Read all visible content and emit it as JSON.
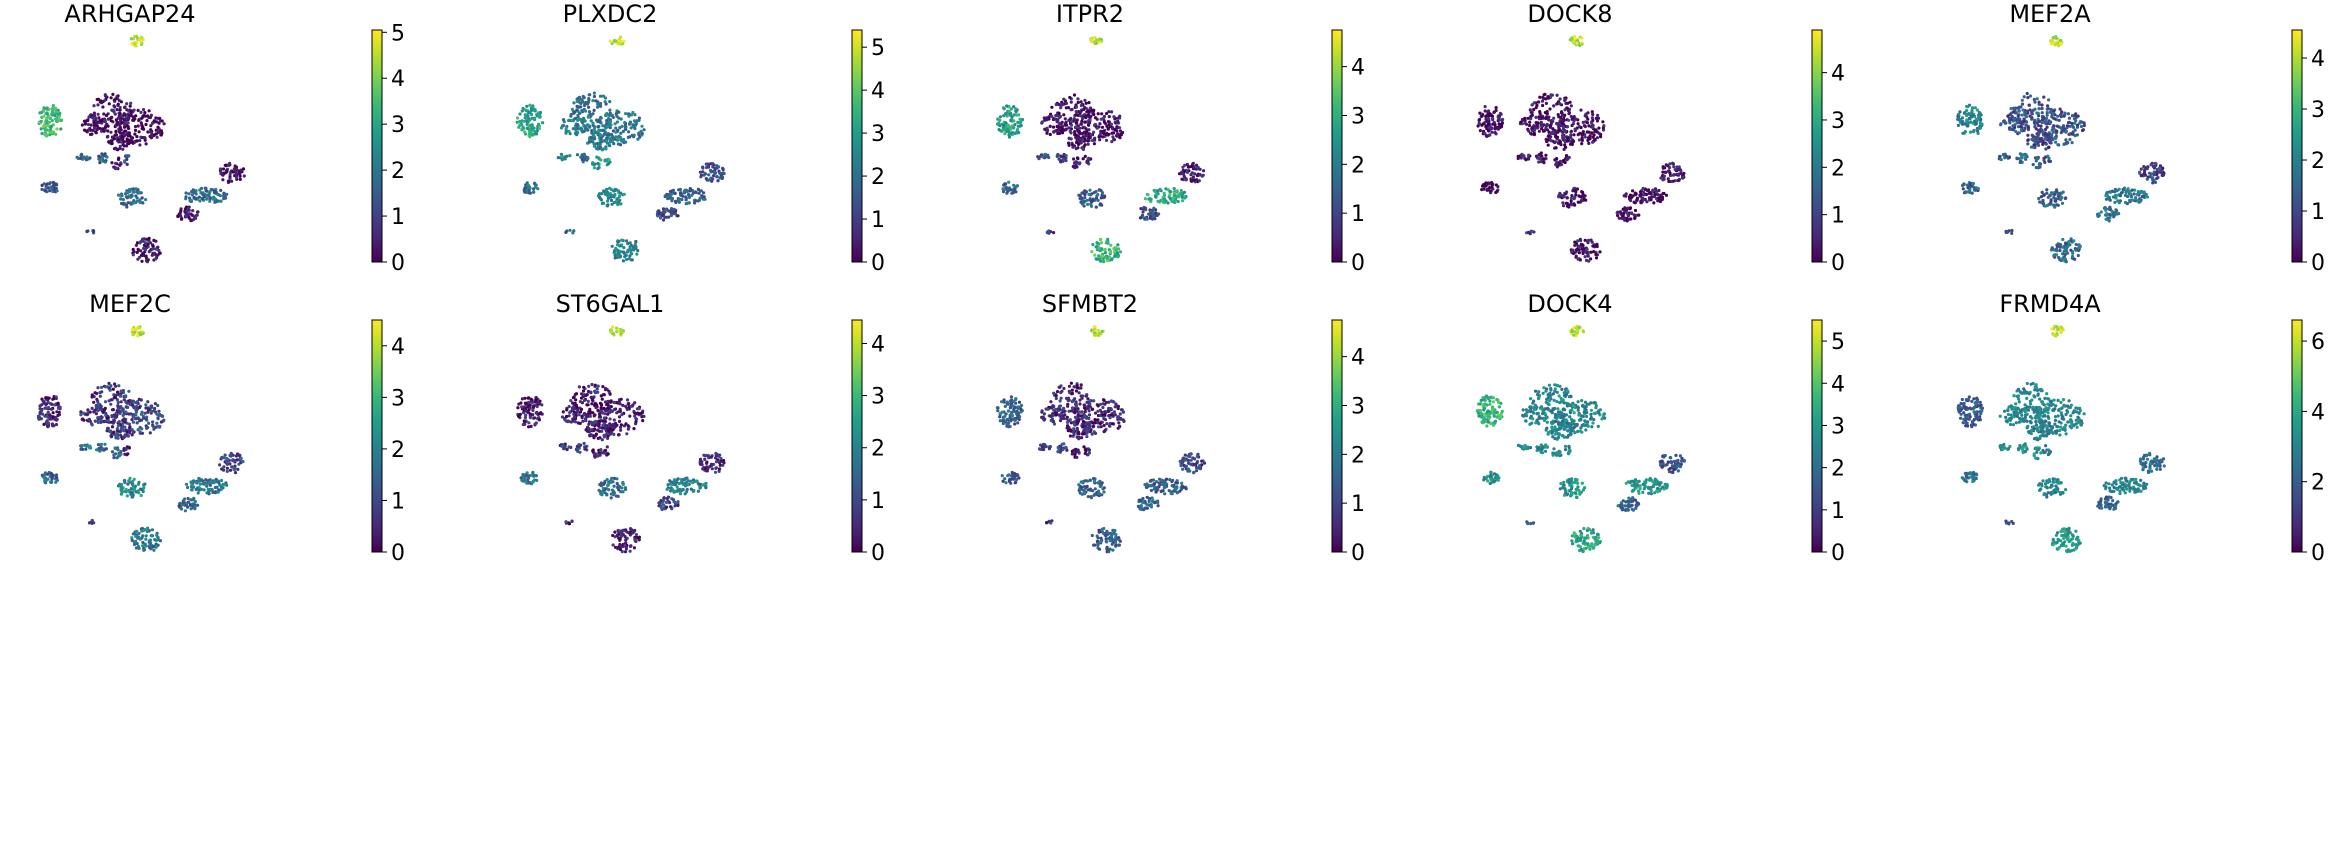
{
  "figure": {
    "layout": "2 rows x 5 columns",
    "type": "umap-feature-plots"
  },
  "colormap": {
    "name": "viridis",
    "stops": [
      "#440154",
      "#482878",
      "#3e4989",
      "#31688e",
      "#26828e",
      "#1f9e89",
      "#35b779",
      "#6ece58",
      "#b5de2b",
      "#fde725"
    ]
  },
  "chart_data": [
    {
      "type": "scatter",
      "title": "ARHGAP24",
      "xlabel": "",
      "ylabel": "",
      "colorbar": {
        "vmin": 0,
        "vmax": 5.05,
        "ticks": [
          0,
          1,
          2,
          3,
          4,
          5
        ]
      },
      "cluster_values": [
        3.4,
        0.2,
        0.1,
        0.1,
        0.1,
        1.5,
        1.6,
        1.2,
        0.4,
        1.8,
        0.2,
        1.3,
        1.8,
        0.2,
        0.3,
        4.7,
        1.3
      ]
    },
    {
      "type": "scatter",
      "title": "PLXDC2",
      "xlabel": "",
      "ylabel": "",
      "colorbar": {
        "vmin": 0,
        "vmax": 5.4,
        "ticks": [
          0,
          1,
          2,
          3,
          4,
          5
        ]
      },
      "cluster_values": [
        3.2,
        2.0,
        2.4,
        2.1,
        2.3,
        1.9,
        2.6,
        3.0,
        2.8,
        1.8,
        1.3,
        2.0,
        2.6,
        1.1,
        2.4,
        5.0,
        1.6
      ]
    },
    {
      "type": "scatter",
      "title": "ITPR2",
      "xlabel": "",
      "ylabel": "",
      "colorbar": {
        "vmin": 0,
        "vmax": 4.75,
        "ticks": [
          0,
          1,
          2,
          3,
          4
        ]
      },
      "cluster_values": [
        2.7,
        0.3,
        0.2,
        0.2,
        0.1,
        1.0,
        1.1,
        0.3,
        0.2,
        2.8,
        0.3,
        1.7,
        1.4,
        1.2,
        3.1,
        4.3,
        0.8
      ]
    },
    {
      "type": "scatter",
      "title": "DOCK8",
      "xlabel": "",
      "ylabel": "",
      "colorbar": {
        "vmin": 0,
        "vmax": 4.9,
        "ticks": [
          0,
          1,
          2,
          3,
          4
        ]
      },
      "cluster_values": [
        0.2,
        0.2,
        0.2,
        0.2,
        0.2,
        0.3,
        0.3,
        0.2,
        0.2,
        0.2,
        0.2,
        0.2,
        0.2,
        0.2,
        0.2,
        4.4,
        1.0
      ]
    },
    {
      "type": "scatter",
      "title": "MEF2A",
      "xlabel": "",
      "ylabel": "",
      "colorbar": {
        "vmin": 0,
        "vmax": 4.55,
        "ticks": [
          0,
          1,
          2,
          3,
          4
        ]
      },
      "cluster_values": [
        2.0,
        1.2,
        1.1,
        1.2,
        1.0,
        1.4,
        1.5,
        1.3,
        1.4,
        1.8,
        0.9,
        1.5,
        1.4,
        1.8,
        1.6,
        4.2,
        1.0
      ]
    },
    {
      "type": "scatter",
      "title": "MEF2C",
      "xlabel": "",
      "ylabel": "",
      "colorbar": {
        "vmin": 0,
        "vmax": 4.5,
        "ticks": [
          0,
          1,
          2,
          3,
          4
        ]
      },
      "cluster_values": [
        0.4,
        0.7,
        0.6,
        0.9,
        0.7,
        1.6,
        1.8,
        0.7,
        1.4,
        1.8,
        1.0,
        1.4,
        2.1,
        1.5,
        1.8,
        4.1,
        0.9
      ]
    },
    {
      "type": "scatter",
      "title": "ST6GAL1",
      "xlabel": "",
      "ylabel": "",
      "colorbar": {
        "vmin": 0,
        "vmax": 4.45,
        "ticks": [
          0,
          1,
          2,
          3,
          4
        ]
      },
      "cluster_values": [
        0.3,
        0.3,
        0.3,
        0.3,
        0.3,
        0.8,
        0.7,
        0.3,
        0.3,
        1.9,
        0.5,
        1.6,
        1.5,
        0.9,
        0.3,
        4.0,
        0.6
      ]
    },
    {
      "type": "scatter",
      "title": "SFMBT2",
      "xlabel": "",
      "ylabel": "",
      "colorbar": {
        "vmin": 0,
        "vmax": 4.75,
        "ticks": [
          0,
          1,
          2,
          3,
          4
        ]
      },
      "cluster_values": [
        1.5,
        0.6,
        0.5,
        0.5,
        0.5,
        1.1,
        1.0,
        0.4,
        0.5,
        1.4,
        0.9,
        1.3,
        1.4,
        1.6,
        1.4,
        4.2,
        0.9
      ]
    },
    {
      "type": "scatter",
      "title": "DOCK4",
      "xlabel": "",
      "ylabel": "",
      "colorbar": {
        "vmin": 0,
        "vmax": 5.5,
        "ticks": [
          0,
          1,
          2,
          3,
          4,
          5
        ]
      },
      "cluster_values": [
        3.6,
        2.5,
        2.5,
        2.6,
        2.4,
        2.7,
        2.6,
        2.5,
        2.6,
        2.9,
        1.4,
        2.7,
        2.8,
        1.8,
        3.2,
        5.0,
        1.6
      ]
    },
    {
      "type": "scatter",
      "title": "FRMD4A",
      "xlabel": "",
      "ylabel": "",
      "colorbar": {
        "vmin": 0,
        "vmax": 6.6,
        "ticks": [
          0,
          2,
          4,
          6
        ]
      },
      "cluster_values": [
        1.8,
        3.0,
        2.9,
        3.1,
        2.9,
        3.6,
        3.2,
        2.6,
        3.4,
        3.0,
        2.4,
        2.5,
        3.0,
        2.0,
        3.6,
        6.0,
        1.8
      ]
    }
  ]
}
